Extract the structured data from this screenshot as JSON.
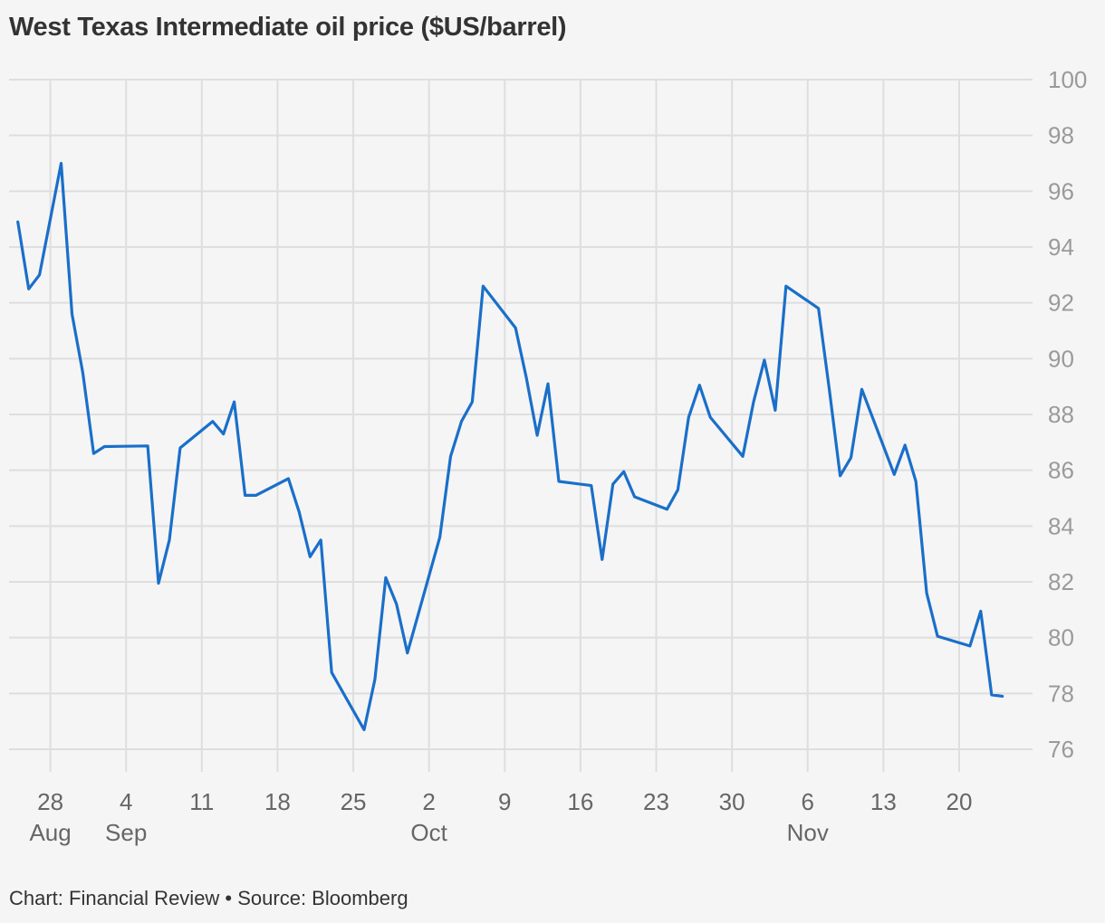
{
  "title": "West Texas Intermediate oil price ($US/barrel)",
  "footer": "Chart: Financial Review • Source: Bloomberg",
  "colors": {
    "line": "#1a6fc9",
    "grid": "#dedede",
    "tick": "#9a9a9a",
    "text": "#333333"
  },
  "chart_data": {
    "type": "line",
    "title": "West Texas Intermediate oil price ($US/barrel)",
    "xlabel": "",
    "ylabel": "",
    "ylim": [
      76,
      100
    ],
    "xlim": [
      "2023-08-24",
      "2023-11-24"
    ],
    "grid": true,
    "y_axis_side": "right",
    "yticks": [
      76,
      78,
      80,
      82,
      84,
      86,
      88,
      90,
      92,
      94,
      96,
      98,
      100
    ],
    "xticks": [
      {
        "date": "2023-08-28",
        "day": "28",
        "month": "Aug"
      },
      {
        "date": "2023-09-04",
        "day": "4",
        "month": "Sep"
      },
      {
        "date": "2023-09-11",
        "day": "11",
        "month": ""
      },
      {
        "date": "2023-09-18",
        "day": "18",
        "month": ""
      },
      {
        "date": "2023-09-25",
        "day": "25",
        "month": ""
      },
      {
        "date": "2023-10-02",
        "day": "2",
        "month": "Oct"
      },
      {
        "date": "2023-10-09",
        "day": "9",
        "month": ""
      },
      {
        "date": "2023-10-16",
        "day": "16",
        "month": ""
      },
      {
        "date": "2023-10-23",
        "day": "23",
        "month": ""
      },
      {
        "date": "2023-10-30",
        "day": "30",
        "month": ""
      },
      {
        "date": "2023-11-06",
        "day": "6",
        "month": "Nov"
      },
      {
        "date": "2023-11-13",
        "day": "13",
        "month": ""
      },
      {
        "date": "2023-11-20",
        "day": "20",
        "month": ""
      }
    ],
    "series": [
      {
        "name": "",
        "points": [
          [
            "2023-08-25",
            94.9
          ],
          [
            "2023-08-26",
            92.5
          ],
          [
            "2023-08-27",
            93.0
          ],
          [
            "2023-08-29",
            97.0
          ],
          [
            "2023-08-30",
            91.6
          ],
          [
            "2023-08-31",
            89.5
          ],
          [
            "2023-09-01",
            86.6
          ],
          [
            "2023-09-02",
            86.85
          ],
          [
            "2023-09-06",
            86.87
          ],
          [
            "2023-09-07",
            81.95
          ],
          [
            "2023-09-08",
            83.5
          ],
          [
            "2023-09-09",
            86.8
          ],
          [
            "2023-09-12",
            87.75
          ],
          [
            "2023-09-13",
            87.3
          ],
          [
            "2023-09-14",
            88.45
          ],
          [
            "2023-09-15",
            85.1
          ],
          [
            "2023-09-16",
            85.1
          ],
          [
            "2023-09-19",
            85.7
          ],
          [
            "2023-09-20",
            84.5
          ],
          [
            "2023-09-21",
            82.9
          ],
          [
            "2023-09-22",
            83.5
          ],
          [
            "2023-09-23",
            78.75
          ],
          [
            "2023-09-26",
            76.7
          ],
          [
            "2023-09-27",
            78.5
          ],
          [
            "2023-09-28",
            82.15
          ],
          [
            "2023-09-29",
            81.2
          ],
          [
            "2023-09-30",
            79.45
          ],
          [
            "2023-10-03",
            83.6
          ],
          [
            "2023-10-04",
            86.5
          ],
          [
            "2023-10-05",
            87.75
          ],
          [
            "2023-10-06",
            88.45
          ],
          [
            "2023-10-07",
            92.6
          ],
          [
            "2023-10-10",
            91.1
          ],
          [
            "2023-10-11",
            89.3
          ],
          [
            "2023-10-12",
            87.25
          ],
          [
            "2023-10-13",
            89.1
          ],
          [
            "2023-10-14",
            85.6
          ],
          [
            "2023-10-17",
            85.45
          ],
          [
            "2023-10-18",
            82.8
          ],
          [
            "2023-10-19",
            85.5
          ],
          [
            "2023-10-20",
            85.95
          ],
          [
            "2023-10-21",
            85.05
          ],
          [
            "2023-10-24",
            84.6
          ],
          [
            "2023-10-25",
            85.3
          ],
          [
            "2023-10-26",
            87.9
          ],
          [
            "2023-10-27",
            89.05
          ],
          [
            "2023-10-28",
            87.9
          ],
          [
            "2023-10-31",
            86.5
          ],
          [
            "2023-11-01",
            88.45
          ],
          [
            "2023-11-02",
            89.95
          ],
          [
            "2023-11-03",
            88.15
          ],
          [
            "2023-11-04",
            92.6
          ],
          [
            "2023-11-07",
            91.8
          ],
          [
            "2023-11-08",
            88.9
          ],
          [
            "2023-11-09",
            85.8
          ],
          [
            "2023-11-10",
            86.45
          ],
          [
            "2023-11-11",
            88.9
          ],
          [
            "2023-11-14",
            85.85
          ],
          [
            "2023-11-15",
            86.9
          ],
          [
            "2023-11-16",
            85.6
          ],
          [
            "2023-11-17",
            81.6
          ],
          [
            "2023-11-18",
            80.05
          ],
          [
            "2023-11-21",
            79.7
          ],
          [
            "2023-11-22",
            80.95
          ],
          [
            "2023-11-23",
            77.95
          ],
          [
            "2023-11-24",
            77.9
          ]
        ]
      }
    ]
  }
}
